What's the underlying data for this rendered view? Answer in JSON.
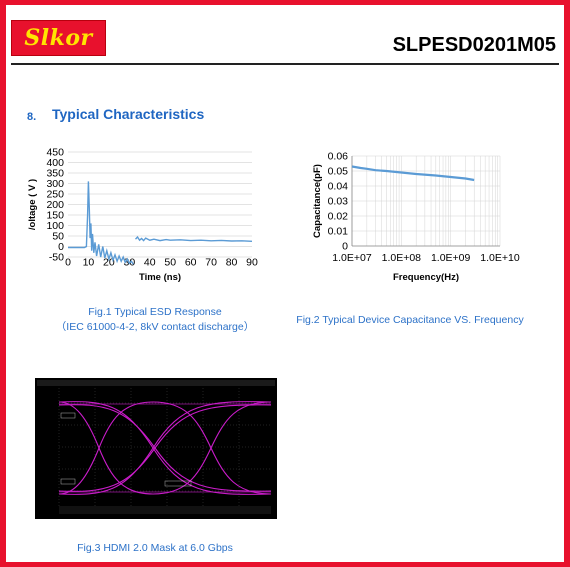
{
  "header": {
    "logo_text": "Slkor",
    "part_number": "SLPESD0201M05",
    "brand_color": "#e8112d",
    "logo_text_color": "#ffe600"
  },
  "section": {
    "number": "8.",
    "title": "Typical Characteristics",
    "color": "#1f66c2"
  },
  "figures": [
    {
      "caption_line1": "Fig.1 Typical ESD Response",
      "caption_line2": "（IEC 61000-4-2, 8kV contact discharge）"
    },
    {
      "caption_line1": "Fig.2 Typical Device Capacitance VS. Frequency"
    },
    {
      "caption_line1": "Fig.3 HDMI 2.0 Mask at 6.0 Gbps"
    }
  ],
  "chart_data": [
    {
      "type": "line",
      "xlabel": "Time (ns)",
      "ylabel": "/oltage ( V )",
      "xlim": [
        0,
        90
      ],
      "ylim": [
        -50,
        450
      ],
      "xticks": [
        0,
        10,
        20,
        30,
        40,
        50,
        60,
        70,
        80,
        90
      ],
      "yticks": [
        -50,
        0,
        50,
        100,
        150,
        200,
        250,
        300,
        350,
        400,
        450
      ],
      "grid": "horizontal",
      "line_color": "#5b9bd5",
      "segments": [
        {
          "x": [
            0,
            8,
            9,
            9.6,
            10,
            10.4,
            10.8,
            11.2,
            11.6,
            12,
            12.6,
            13.2,
            14,
            15,
            16,
            17,
            18,
            19,
            20,
            21,
            22,
            23,
            24,
            25,
            26,
            27,
            28,
            29,
            30,
            31,
            32
          ],
          "y": [
            -5,
            -5,
            0,
            150,
            310,
            180,
            40,
            110,
            -20,
            60,
            -30,
            20,
            -45,
            10,
            -50,
            0,
            -55,
            -20,
            -60,
            -30,
            -65,
            -40,
            -70,
            -45,
            -70,
            -50,
            -75,
            -60,
            -80,
            -70,
            -85
          ]
        },
        {
          "x": [
            33,
            34,
            35,
            36,
            37,
            38,
            40,
            42,
            45,
            48,
            50,
            55,
            60,
            65,
            70,
            75,
            80,
            85,
            90
          ],
          "y": [
            35,
            45,
            30,
            38,
            28,
            40,
            30,
            35,
            28,
            33,
            30,
            32,
            28,
            30,
            27,
            29,
            26,
            27,
            25
          ]
        }
      ]
    },
    {
      "type": "line",
      "xlabel": "Frequency(Hz)",
      "ylabel": "Capacitance(pF)",
      "xscale": "log",
      "xlim": [
        10000000,
        10000000000
      ],
      "ylim": [
        0,
        0.06
      ],
      "xticks": [
        "1.0E+07",
        "1.0E+08",
        "1.0E+09",
        "1.0E+10"
      ],
      "yticks": [
        "0",
        "0.01",
        "0.02",
        "0.03",
        "0.04",
        "0.05",
        "0.06"
      ],
      "grid": "both",
      "line_color": "#5b9bd5",
      "series": [
        {
          "x": [
            10000000,
            15000000,
            20000000,
            30000000,
            50000000,
            100000000,
            200000000,
            500000000,
            1000000000,
            2000000000,
            3000000000
          ],
          "y": [
            0.053,
            0.052,
            0.0515,
            0.0505,
            0.05,
            0.049,
            0.048,
            0.047,
            0.046,
            0.045,
            0.044
          ]
        }
      ]
    }
  ]
}
